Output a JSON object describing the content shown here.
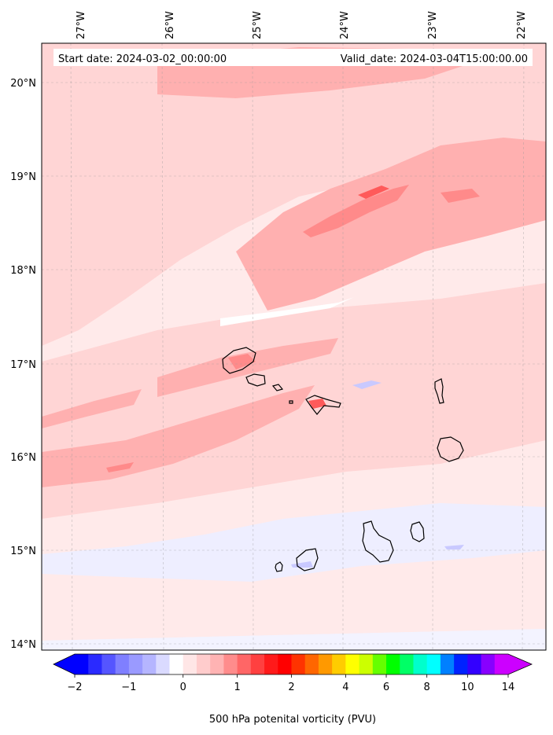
{
  "header": {
    "start_date": "Start date: 2024-03-02_00:00:00",
    "valid_date": "Valid_date: 2024-03-04T15:00:00.00"
  },
  "longitude_labels": [
    "27°W",
    "26°W",
    "25°W",
    "24°W",
    "23°W",
    "22°W"
  ],
  "latitude_labels": [
    "20°N",
    "19°N",
    "18°N",
    "17°N",
    "16°N",
    "15°N",
    "14°N"
  ],
  "colorbar": {
    "label": "500 hPa potenital vorticity (PVU)",
    "tick_labels": [
      "−2",
      "−1",
      "0",
      "1",
      "2",
      "4",
      "6",
      "8",
      "10",
      "14"
    ],
    "colors": [
      "#0000ff",
      "#2a2aff",
      "#5555ff",
      "#7f7fff",
      "#9a9aff",
      "#b5b5ff",
      "#dadaff",
      "#ffffff",
      "#ffe6e6",
      "#ffcccc",
      "#ffb3b3",
      "#ff8c8c",
      "#ff6666",
      "#ff4040",
      "#ff1a1a",
      "#ff0000",
      "#ff3300",
      "#ff6600",
      "#ff9900",
      "#ffcc00",
      "#ffff00",
      "#ccff00",
      "#66ff00",
      "#00ff00",
      "#00ff66",
      "#00ffcc",
      "#00ffff",
      "#0080ff",
      "#0022ff",
      "#3300ff",
      "#8800ff",
      "#cc00ff"
    ],
    "under_color": "#0000ff",
    "over_color": "#cc00ff"
  },
  "pv_colors": {
    "background": "#ffeaea",
    "light": "#ffd5d5",
    "medium": "#ffb0b0",
    "strong": "#ff8a8a",
    "max": "#ff5a5a",
    "negative": "#eeeeff",
    "negative_strong": "#c9c9ff"
  },
  "coastline_color": "#000000"
}
